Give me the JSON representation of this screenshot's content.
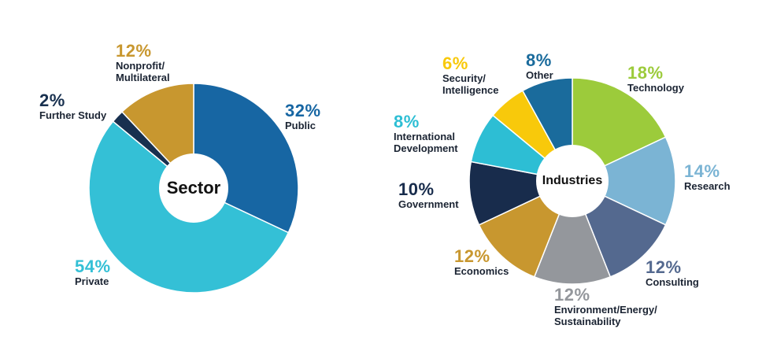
{
  "chart_data": [
    {
      "type": "pie",
      "title": "Sector",
      "slices": [
        {
          "name": "Public",
          "pct_label": "32%",
          "value": 32,
          "color": "#1766a3"
        },
        {
          "name": "Private",
          "pct_label": "54%",
          "value": 54,
          "color": "#34c0d6"
        },
        {
          "name": "Further Study",
          "pct_label": "2%",
          "value": 2,
          "color": "#18304f"
        },
        {
          "name": "Nonprofit/\nMultilateral",
          "pct_label": "12%",
          "value": 12,
          "color": "#c8972f"
        }
      ]
    },
    {
      "type": "pie",
      "title": "Industries",
      "slices": [
        {
          "name": "Technology",
          "pct_label": "18%",
          "value": 18,
          "color": "#9ccb3b"
        },
        {
          "name": "Research",
          "pct_label": "14%",
          "value": 14,
          "color": "#7bb4d4"
        },
        {
          "name": "Consulting",
          "pct_label": "12%",
          "value": 12,
          "color": "#54698f"
        },
        {
          "name": "Environment/Energy/\nSustainability",
          "pct_label": "12%",
          "value": 12,
          "color": "#94979c"
        },
        {
          "name": "Economics",
          "pct_label": "12%",
          "value": 12,
          "color": "#c8972f"
        },
        {
          "name": "Government",
          "pct_label": "10%",
          "value": 10,
          "color": "#182c4c"
        },
        {
          "name": "International\nDevelopment",
          "pct_label": "8%",
          "value": 8,
          "color": "#2dbed4"
        },
        {
          "name": "Security/\nIntelligence",
          "pct_label": "6%",
          "value": 6,
          "color": "#f8c90b"
        },
        {
          "name": "Other",
          "pct_label": "8%",
          "value": 8,
          "color": "#1a6b9c"
        }
      ]
    }
  ]
}
